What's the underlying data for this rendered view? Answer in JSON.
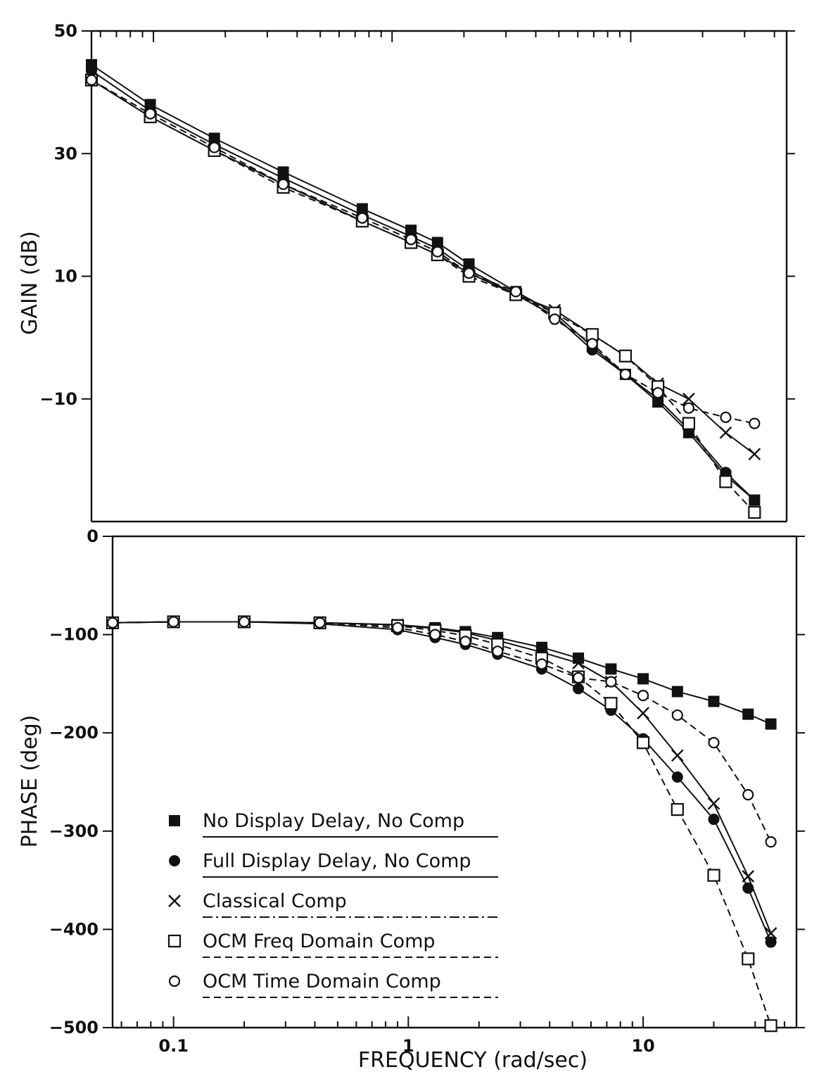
{
  "colors": {
    "ink": "#111111",
    "background": "#ffffff"
  },
  "chart_data": [
    {
      "type": "line",
      "panel": "gain",
      "xscale": "log",
      "xlim": [
        0.055,
        45
      ],
      "ylim": [
        -30,
        50
      ],
      "ylabel": "GAIN (dB)",
      "yticks": [
        {
          "value": 50,
          "label": "50"
        },
        {
          "value": 30,
          "label": "30"
        },
        {
          "value": 10,
          "label": "10"
        },
        {
          "value": -10,
          "label": "−10"
        }
      ],
      "series": [
        {
          "legend_index": 0,
          "marker": "filled-square",
          "line": "solid",
          "x": [
            0.055,
            0.097,
            0.18,
            0.35,
            0.75,
            1.2,
            1.55,
            2.1,
            3.3,
            4.8,
            6.9,
            9.5,
            13,
            17.5,
            25,
            33
          ],
          "y": [
            44.5,
            38.0,
            32.5,
            27.0,
            21.0,
            17.5,
            15.5,
            12.0,
            7.5,
            4.0,
            -1.5,
            -6.0,
            -10.5,
            -15.5,
            -22.5,
            -26.5
          ]
        },
        {
          "legend_index": 1,
          "marker": "filled-circle",
          "line": "solid",
          "x": [
            0.055,
            0.097,
            0.18,
            0.35,
            0.75,
            1.2,
            1.55,
            2.1,
            3.3,
            4.8,
            6.9,
            9.5,
            13,
            17.5,
            25,
            33
          ],
          "y": [
            43.5,
            37.0,
            31.5,
            26.0,
            20.0,
            16.5,
            14.5,
            11.0,
            7.0,
            3.5,
            -2.0,
            -6.0,
            -10.0,
            -15.0,
            -22.0,
            -26.5
          ]
        },
        {
          "legend_index": 2,
          "marker": "x",
          "line": "solid",
          "x": [
            0.055,
            0.097,
            0.18,
            0.35,
            0.75,
            1.2,
            1.55,
            2.1,
            3.3,
            4.8,
            6.9,
            9.5,
            13,
            17.5,
            25,
            33
          ],
          "y": [
            42.0,
            36.0,
            30.5,
            25.0,
            19.0,
            15.5,
            13.5,
            10.5,
            7.0,
            4.5,
            0.5,
            -3.0,
            -7.5,
            -10.0,
            -15.5,
            -19.0
          ]
        },
        {
          "legend_index": 3,
          "marker": "open-square",
          "line": "dashed",
          "x": [
            0.055,
            0.097,
            0.18,
            0.35,
            0.75,
            1.2,
            1.55,
            2.1,
            3.3,
            4.8,
            6.9,
            9.5,
            13,
            17.5,
            25,
            33
          ],
          "y": [
            42.0,
            36.0,
            30.5,
            24.5,
            19.0,
            15.5,
            13.5,
            10.0,
            7.0,
            4.0,
            0.5,
            -3.0,
            -8.0,
            -14.0,
            -23.5,
            -28.5
          ]
        },
        {
          "legend_index": 4,
          "marker": "open-circle",
          "line": "dashed",
          "x": [
            0.055,
            0.097,
            0.18,
            0.35,
            0.75,
            1.2,
            1.55,
            2.1,
            3.3,
            4.8,
            6.9,
            9.5,
            13,
            17.5,
            25,
            33
          ],
          "y": [
            42.0,
            36.5,
            31.0,
            25.0,
            19.5,
            16.0,
            14.0,
            10.5,
            7.5,
            3.0,
            -1.0,
            -6.0,
            -9.0,
            -11.5,
            -13.0,
            -14.0
          ]
        }
      ]
    },
    {
      "type": "line",
      "panel": "phase",
      "xscale": "log",
      "xlim": [
        0.055,
        45
      ],
      "ylim": [
        -500,
        0
      ],
      "xlabel": "FREQUENCY (rad/sec)",
      "ylabel": "PHASE (deg)",
      "xticks": [
        {
          "value": 0.1,
          "label": "0.1"
        },
        {
          "value": 1,
          "label": "1"
        },
        {
          "value": 10,
          "label": "10"
        }
      ],
      "yticks": [
        {
          "value": 0,
          "label": "0"
        },
        {
          "value": -100,
          "label": "−100"
        },
        {
          "value": -200,
          "label": "−200"
        },
        {
          "value": -300,
          "label": "−300"
        },
        {
          "value": -400,
          "label": "−400"
        },
        {
          "value": -500,
          "label": "−500"
        }
      ],
      "legend_position": "bottom-left",
      "legend": [
        {
          "label": "No Display Delay, No Comp",
          "marker": "filled-square",
          "line": "solid"
        },
        {
          "label": "Full Display Delay, No Comp",
          "marker": "filled-circle",
          "line": "solid"
        },
        {
          "label": "Classical Comp",
          "marker": "x",
          "line": "dashdot"
        },
        {
          "label": "OCM Freq Domain Comp",
          "marker": "open-square",
          "line": "dashed"
        },
        {
          "label": "OCM Time Domain Comp",
          "marker": "open-circle",
          "line": "dashed"
        }
      ],
      "series": [
        {
          "legend_index": 0,
          "marker": "filled-square",
          "line": "solid",
          "x": [
            0.055,
            0.1,
            0.2,
            0.42,
            0.9,
            1.3,
            1.75,
            2.4,
            3.7,
            5.3,
            7.3,
            10,
            14,
            20,
            28,
            35
          ],
          "y": [
            -88,
            -87,
            -87,
            -88,
            -90,
            -93,
            -97,
            -103,
            -113,
            -124,
            -135,
            -145,
            -158,
            -168,
            -181,
            -191
          ]
        },
        {
          "legend_index": 1,
          "marker": "filled-circle",
          "line": "solid",
          "x": [
            0.055,
            0.1,
            0.2,
            0.42,
            0.9,
            1.3,
            1.75,
            2.4,
            3.7,
            5.3,
            7.3,
            10,
            14,
            20,
            28,
            35
          ],
          "y": [
            -88,
            -87,
            -87,
            -89,
            -95,
            -103,
            -110,
            -120,
            -135,
            -155,
            -177,
            -206,
            -245,
            -288,
            -358,
            -413
          ]
        },
        {
          "legend_index": 2,
          "marker": "x",
          "line": "solid",
          "x": [
            0.055,
            0.1,
            0.2,
            0.42,
            0.9,
            1.3,
            1.75,
            2.4,
            3.7,
            5.3,
            7.3,
            10,
            14,
            20,
            28,
            35
          ],
          "y": [
            -88,
            -87,
            -87,
            -88,
            -90,
            -94,
            -98,
            -106,
            -118,
            -129,
            -148,
            -180,
            -223,
            -272,
            -346,
            -404
          ]
        },
        {
          "legend_index": 3,
          "marker": "open-square",
          "line": "dashed",
          "x": [
            0.055,
            0.1,
            0.2,
            0.42,
            0.9,
            1.3,
            1.75,
            2.4,
            3.7,
            5.3,
            7.3,
            10,
            14,
            20,
            28,
            35
          ],
          "y": [
            -88,
            -87,
            -87,
            -88,
            -91,
            -96,
            -101,
            -110,
            -124,
            -143,
            -170,
            -210,
            -278,
            -345,
            -430,
            -498
          ]
        },
        {
          "legend_index": 4,
          "marker": "open-circle",
          "line": "dashed",
          "x": [
            0.055,
            0.1,
            0.2,
            0.42,
            0.9,
            1.3,
            1.75,
            2.4,
            3.7,
            5.3,
            7.3,
            10,
            14,
            20,
            28,
            35
          ],
          "y": [
            -88,
            -87,
            -87,
            -88,
            -93,
            -100,
            -107,
            -117,
            -130,
            -144,
            -148,
            -162,
            -182,
            -210,
            -263,
            -311
          ]
        }
      ]
    }
  ]
}
